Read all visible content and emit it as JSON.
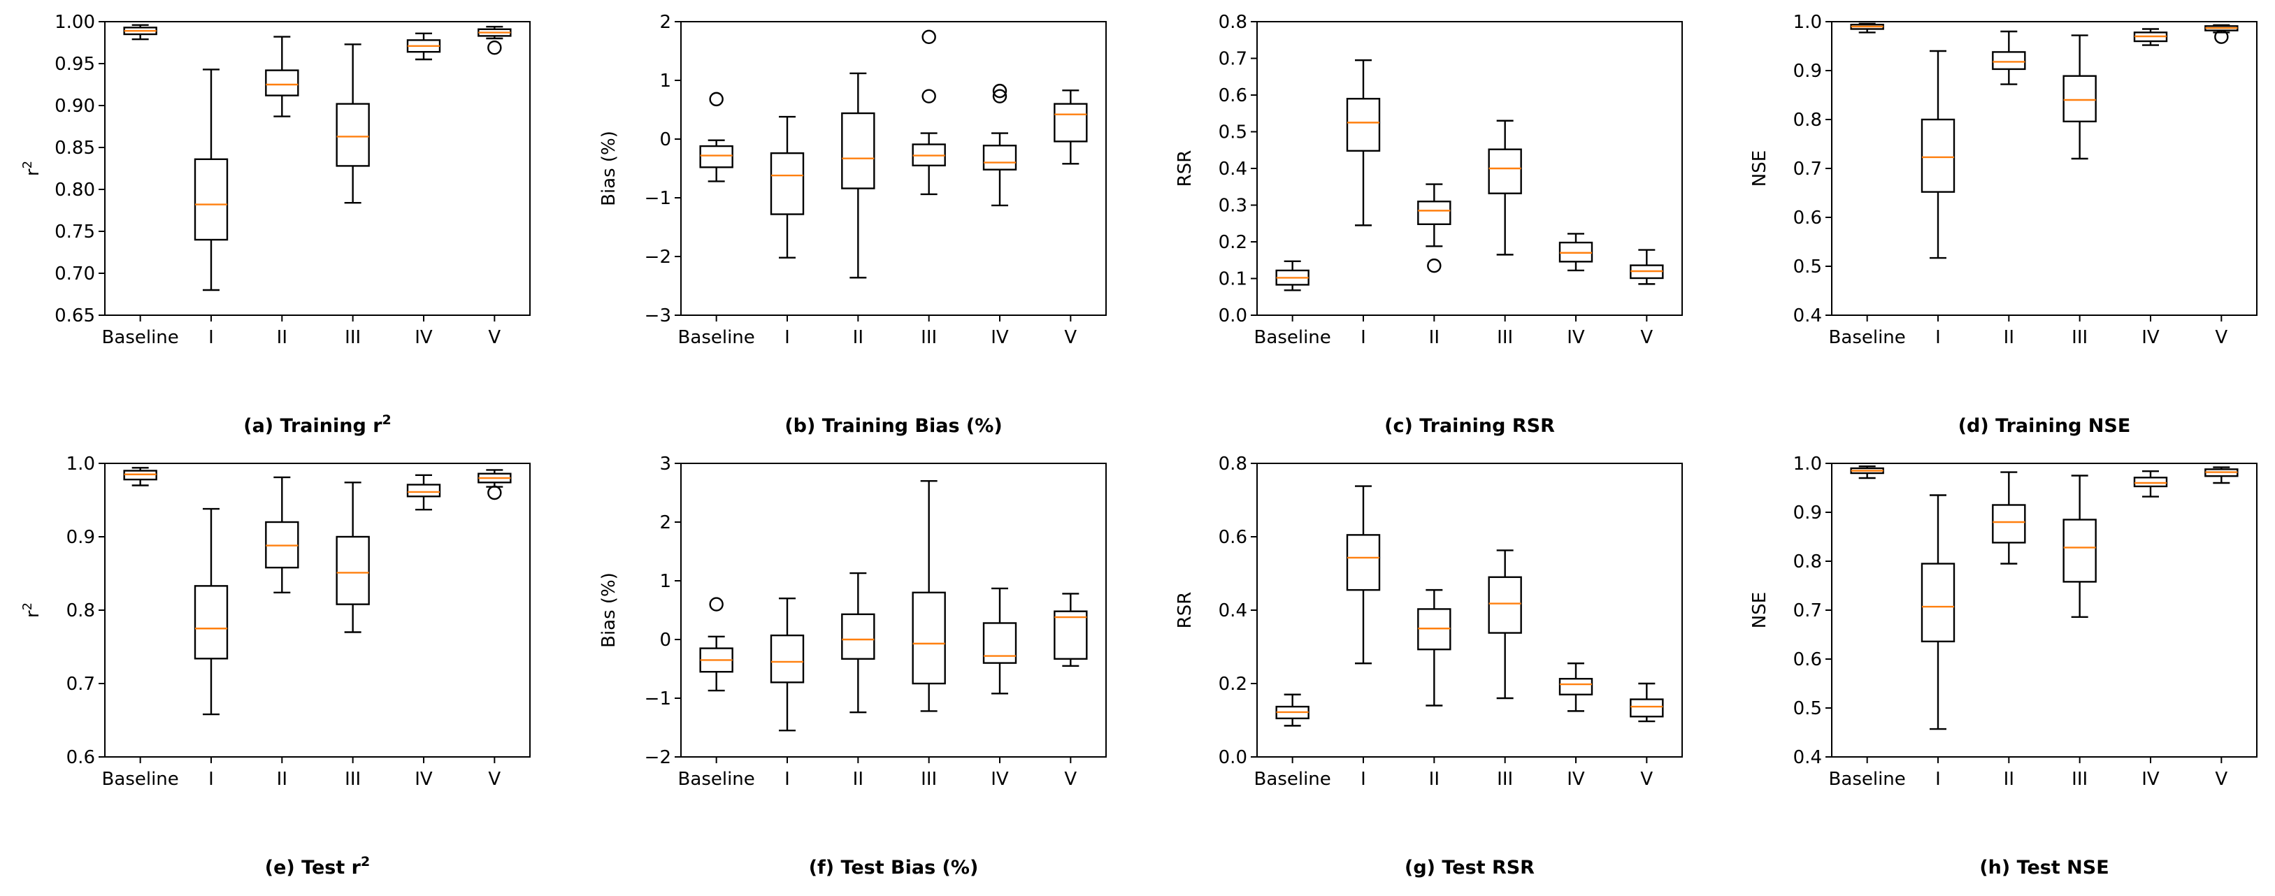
{
  "colors": {
    "box": "#000000",
    "median": "#ff7f0e",
    "background": "#ffffff"
  },
  "chart_data": [
    {
      "type": "box",
      "title": "(a) Training r",
      "title_sup": "2",
      "ylabel": "r",
      "ylabel_sup": "2",
      "categories": [
        "Baseline",
        "I",
        "II",
        "III",
        "IV",
        "V"
      ],
      "ylim": [
        0.65,
        1.0
      ],
      "yticks": [
        0.65,
        0.7,
        0.75,
        0.8,
        0.85,
        0.9,
        0.95,
        1.0
      ],
      "ytick_labels": [
        "0.65",
        "0.70",
        "0.75",
        "0.80",
        "0.85",
        "0.90",
        "0.95",
        "1.00"
      ],
      "boxes": [
        {
          "min": 0.979,
          "q1": 0.985,
          "median": 0.989,
          "q3": 0.993,
          "max": 0.996,
          "fliers": []
        },
        {
          "min": 0.68,
          "q1": 0.74,
          "median": 0.782,
          "q3": 0.836,
          "max": 0.943,
          "fliers": []
        },
        {
          "min": 0.887,
          "q1": 0.912,
          "median": 0.925,
          "q3": 0.942,
          "max": 0.982,
          "fliers": []
        },
        {
          "min": 0.784,
          "q1": 0.828,
          "median": 0.863,
          "q3": 0.902,
          "max": 0.973,
          "fliers": []
        },
        {
          "min": 0.955,
          "q1": 0.964,
          "median": 0.971,
          "q3": 0.978,
          "max": 0.986,
          "fliers": []
        },
        {
          "min": 0.98,
          "q1": 0.983,
          "median": 0.987,
          "q3": 0.991,
          "max": 0.994,
          "fliers": [
            0.969
          ]
        }
      ]
    },
    {
      "type": "box",
      "title": "(b) Training Bias (%)",
      "ylabel": "Bias (%)",
      "categories": [
        "Baseline",
        "I",
        "II",
        "III",
        "IV",
        "V"
      ],
      "ylim": [
        -3,
        2
      ],
      "yticks": [
        -3,
        -2,
        -1,
        0,
        1,
        2
      ],
      "ytick_labels": [
        "−3",
        "−2",
        "−1",
        "0",
        "1",
        "2"
      ],
      "boxes": [
        {
          "min": -0.72,
          "q1": -0.48,
          "median": -0.28,
          "q3": -0.12,
          "max": -0.02,
          "fliers": [
            0.68
          ]
        },
        {
          "min": -2.02,
          "q1": -1.28,
          "median": -0.62,
          "q3": -0.24,
          "max": 0.38,
          "fliers": []
        },
        {
          "min": -2.36,
          "q1": -0.84,
          "median": -0.33,
          "q3": 0.44,
          "max": 1.12,
          "fliers": []
        },
        {
          "min": -0.94,
          "q1": -0.45,
          "median": -0.28,
          "q3": -0.09,
          "max": 0.1,
          "fliers": [
            0.73,
            1.74
          ]
        },
        {
          "min": -1.13,
          "q1": -0.52,
          "median": -0.4,
          "q3": -0.11,
          "max": 0.1,
          "fliers": [
            0.73,
            0.82
          ]
        },
        {
          "min": -0.42,
          "q1": -0.04,
          "median": 0.42,
          "q3": 0.6,
          "max": 0.83,
          "fliers": []
        }
      ]
    },
    {
      "type": "box",
      "title": "(c) Training RSR",
      "ylabel": "RSR",
      "categories": [
        "Baseline",
        "I",
        "II",
        "III",
        "IV",
        "V"
      ],
      "ylim": [
        0.0,
        0.8
      ],
      "yticks": [
        0.0,
        0.1,
        0.2,
        0.3,
        0.4,
        0.5,
        0.6,
        0.7,
        0.8
      ],
      "ytick_labels": [
        "0.0",
        "0.1",
        "0.2",
        "0.3",
        "0.4",
        "0.5",
        "0.6",
        "0.7",
        "0.8"
      ],
      "boxes": [
        {
          "min": 0.068,
          "q1": 0.083,
          "median": 0.102,
          "q3": 0.122,
          "max": 0.147,
          "fliers": []
        },
        {
          "min": 0.245,
          "q1": 0.448,
          "median": 0.525,
          "q3": 0.59,
          "max": 0.695,
          "fliers": []
        },
        {
          "min": 0.188,
          "q1": 0.248,
          "median": 0.285,
          "q3": 0.31,
          "max": 0.357,
          "fliers": [
            0.135
          ]
        },
        {
          "min": 0.165,
          "q1": 0.332,
          "median": 0.4,
          "q3": 0.452,
          "max": 0.53,
          "fliers": []
        },
        {
          "min": 0.122,
          "q1": 0.146,
          "median": 0.17,
          "q3": 0.198,
          "max": 0.222,
          "fliers": []
        },
        {
          "min": 0.085,
          "q1": 0.101,
          "median": 0.12,
          "q3": 0.136,
          "max": 0.178,
          "fliers": []
        }
      ]
    },
    {
      "type": "box",
      "title": "(d) Training NSE",
      "ylabel": "NSE",
      "categories": [
        "Baseline",
        "I",
        "II",
        "III",
        "IV",
        "V"
      ],
      "ylim": [
        0.4,
        1.0
      ],
      "yticks": [
        0.4,
        0.5,
        0.6,
        0.7,
        0.8,
        0.9,
        1.0
      ],
      "ytick_labels": [
        "0.4",
        "0.5",
        "0.6",
        "0.7",
        "0.8",
        "0.9",
        "1.0"
      ],
      "boxes": [
        {
          "min": 0.978,
          "q1": 0.985,
          "median": 0.99,
          "q3": 0.994,
          "max": 0.996,
          "fliers": []
        },
        {
          "min": 0.517,
          "q1": 0.652,
          "median": 0.723,
          "q3": 0.8,
          "max": 0.94,
          "fliers": []
        },
        {
          "min": 0.872,
          "q1": 0.903,
          "median": 0.918,
          "q3": 0.938,
          "max": 0.98,
          "fliers": []
        },
        {
          "min": 0.72,
          "q1": 0.796,
          "median": 0.84,
          "q3": 0.889,
          "max": 0.972,
          "fliers": []
        },
        {
          "min": 0.952,
          "q1": 0.96,
          "median": 0.97,
          "q3": 0.978,
          "max": 0.985,
          "fliers": []
        },
        {
          "min": 0.978,
          "q1": 0.982,
          "median": 0.987,
          "q3": 0.991,
          "max": 0.993,
          "fliers": [
            0.969
          ]
        }
      ]
    },
    {
      "type": "box",
      "title": "(e) Test r",
      "title_sup": "2",
      "ylabel": "r",
      "ylabel_sup": "2",
      "categories": [
        "Baseline",
        "I",
        "II",
        "III",
        "IV",
        "V"
      ],
      "ylim": [
        0.6,
        1.0
      ],
      "yticks": [
        0.6,
        0.7,
        0.8,
        0.9,
        1.0
      ],
      "ytick_labels": [
        "0.6",
        "0.7",
        "0.8",
        "0.9",
        "1.0"
      ],
      "boxes": [
        {
          "min": 0.97,
          "q1": 0.978,
          "median": 0.985,
          "q3": 0.99,
          "max": 0.994,
          "fliers": []
        },
        {
          "min": 0.658,
          "q1": 0.734,
          "median": 0.775,
          "q3": 0.833,
          "max": 0.938,
          "fliers": []
        },
        {
          "min": 0.824,
          "q1": 0.858,
          "median": 0.888,
          "q3": 0.92,
          "max": 0.981,
          "fliers": []
        },
        {
          "min": 0.77,
          "q1": 0.808,
          "median": 0.851,
          "q3": 0.9,
          "max": 0.974,
          "fliers": []
        },
        {
          "min": 0.937,
          "q1": 0.955,
          "median": 0.961,
          "q3": 0.971,
          "max": 0.984,
          "fliers": []
        },
        {
          "min": 0.968,
          "q1": 0.974,
          "median": 0.98,
          "q3": 0.986,
          "max": 0.991,
          "fliers": [
            0.96
          ]
        }
      ]
    },
    {
      "type": "box",
      "title": "(f) Test Bias (%)",
      "ylabel": "Bias (%)",
      "categories": [
        "Baseline",
        "I",
        "II",
        "III",
        "IV",
        "V"
      ],
      "ylim": [
        -2,
        3
      ],
      "yticks": [
        -2,
        -1,
        0,
        1,
        2,
        3
      ],
      "ytick_labels": [
        "−2",
        "−1",
        "0",
        "1",
        "2",
        "3"
      ],
      "boxes": [
        {
          "min": -0.87,
          "q1": -0.55,
          "median": -0.35,
          "q3": -0.15,
          "max": 0.05,
          "fliers": [
            0.6
          ]
        },
        {
          "min": -1.55,
          "q1": -0.73,
          "median": -0.38,
          "q3": 0.07,
          "max": 0.7,
          "fliers": []
        },
        {
          "min": -1.24,
          "q1": -0.33,
          "median": 0.0,
          "q3": 0.43,
          "max": 1.13,
          "fliers": []
        },
        {
          "min": -1.22,
          "q1": -0.75,
          "median": -0.07,
          "q3": 0.8,
          "max": 2.7,
          "fliers": []
        },
        {
          "min": -0.92,
          "q1": -0.4,
          "median": -0.28,
          "q3": 0.28,
          "max": 0.87,
          "fliers": []
        },
        {
          "min": -0.45,
          "q1": -0.33,
          "median": 0.38,
          "q3": 0.48,
          "max": 0.78,
          "fliers": []
        }
      ]
    },
    {
      "type": "box",
      "title": "(g) Test RSR",
      "ylabel": "RSR",
      "categories": [
        "Baseline",
        "I",
        "II",
        "III",
        "IV",
        "V"
      ],
      "ylim": [
        0.0,
        0.8
      ],
      "yticks": [
        0.0,
        0.2,
        0.4,
        0.6,
        0.8
      ],
      "ytick_labels": [
        "0.0",
        "0.2",
        "0.4",
        "0.6",
        "0.8"
      ],
      "boxes": [
        {
          "min": 0.085,
          "q1": 0.105,
          "median": 0.122,
          "q3": 0.137,
          "max": 0.17,
          "fliers": []
        },
        {
          "min": 0.255,
          "q1": 0.455,
          "median": 0.543,
          "q3": 0.605,
          "max": 0.738,
          "fliers": []
        },
        {
          "min": 0.14,
          "q1": 0.293,
          "median": 0.35,
          "q3": 0.403,
          "max": 0.455,
          "fliers": []
        },
        {
          "min": 0.16,
          "q1": 0.338,
          "median": 0.418,
          "q3": 0.49,
          "max": 0.563,
          "fliers": []
        },
        {
          "min": 0.125,
          "q1": 0.17,
          "median": 0.198,
          "q3": 0.213,
          "max": 0.255,
          "fliers": []
        },
        {
          "min": 0.097,
          "q1": 0.11,
          "median": 0.137,
          "q3": 0.157,
          "max": 0.2,
          "fliers": []
        }
      ]
    },
    {
      "type": "box",
      "title": "(h) Test NSE",
      "ylabel": "NSE",
      "categories": [
        "Baseline",
        "I",
        "II",
        "III",
        "IV",
        "V"
      ],
      "ylim": [
        0.4,
        1.0
      ],
      "yticks": [
        0.4,
        0.5,
        0.6,
        0.7,
        0.8,
        0.9,
        1.0
      ],
      "ytick_labels": [
        "0.4",
        "0.5",
        "0.6",
        "0.7",
        "0.8",
        "0.9",
        "1.0"
      ],
      "boxes": [
        {
          "min": 0.97,
          "q1": 0.98,
          "median": 0.985,
          "q3": 0.99,
          "max": 0.994,
          "fliers": []
        },
        {
          "min": 0.457,
          "q1": 0.636,
          "median": 0.707,
          "q3": 0.795,
          "max": 0.935,
          "fliers": []
        },
        {
          "min": 0.795,
          "q1": 0.838,
          "median": 0.88,
          "q3": 0.915,
          "max": 0.982,
          "fliers": []
        },
        {
          "min": 0.686,
          "q1": 0.758,
          "median": 0.828,
          "q3": 0.885,
          "max": 0.975,
          "fliers": []
        },
        {
          "min": 0.932,
          "q1": 0.953,
          "median": 0.96,
          "q3": 0.971,
          "max": 0.984,
          "fliers": []
        },
        {
          "min": 0.96,
          "q1": 0.974,
          "median": 0.982,
          "q3": 0.988,
          "max": 0.992,
          "fliers": []
        }
      ]
    }
  ]
}
